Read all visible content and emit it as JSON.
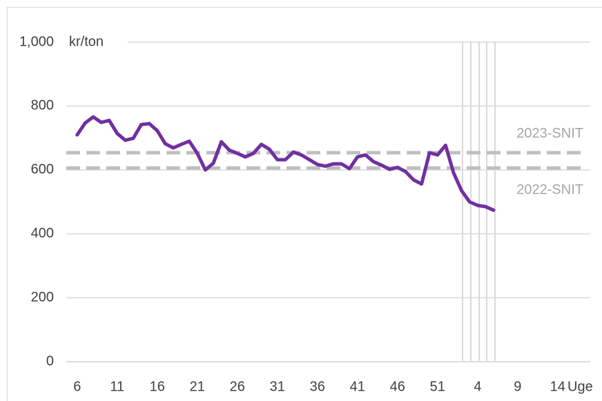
{
  "chart_data": {
    "type": "line",
    "y_label": "kr/ton",
    "x_label": "Uge",
    "categories": [
      "6",
      null,
      null,
      null,
      null,
      "11",
      null,
      null,
      null,
      null,
      "16",
      null,
      null,
      null,
      null,
      "21",
      null,
      null,
      null,
      null,
      "26",
      null,
      null,
      null,
      null,
      "31",
      null,
      null,
      null,
      null,
      "36",
      null,
      null,
      null,
      null,
      "41",
      null,
      null,
      null,
      null,
      "46",
      null,
      null,
      null,
      null,
      "51",
      null,
      null,
      null,
      null,
      "4",
      null,
      null,
      null,
      null,
      "9",
      null,
      null,
      null,
      null,
      "14",
      null,
      null,
      null,
      null
    ],
    "series": [
      {
        "color": "#7030a0",
        "values": [
          710,
          747,
          766,
          749,
          755,
          714,
          693,
          699,
          742,
          745,
          723,
          682,
          669,
          680,
          690,
          652,
          600,
          621,
          688,
          662,
          652,
          641,
          652,
          680,
          665,
          632,
          632,
          656,
          647,
          632,
          617,
          612,
          619,
          619,
          604,
          641,
          647,
          626,
          615,
          602,
          608,
          595,
          569,
          556,
          654,
          647,
          677,
          591,
          535,
          500,
          489,
          485,
          474,
          null,
          null,
          null,
          null,
          null,
          null,
          null,
          null,
          null,
          null,
          null,
          null
        ]
      }
    ],
    "reference_lines": [
      {
        "label": "2023-SNIT",
        "value": 654,
        "color": "#bfbfbf"
      },
      {
        "label": "2022-SNIT",
        "value": 606,
        "color": "#bfbfbf"
      }
    ],
    "ylim": [
      0,
      1000
    ],
    "yticks": [
      0,
      200,
      400,
      600,
      800,
      {
        "value": 1000,
        "label": "1,000"
      }
    ],
    "grid": true
  }
}
